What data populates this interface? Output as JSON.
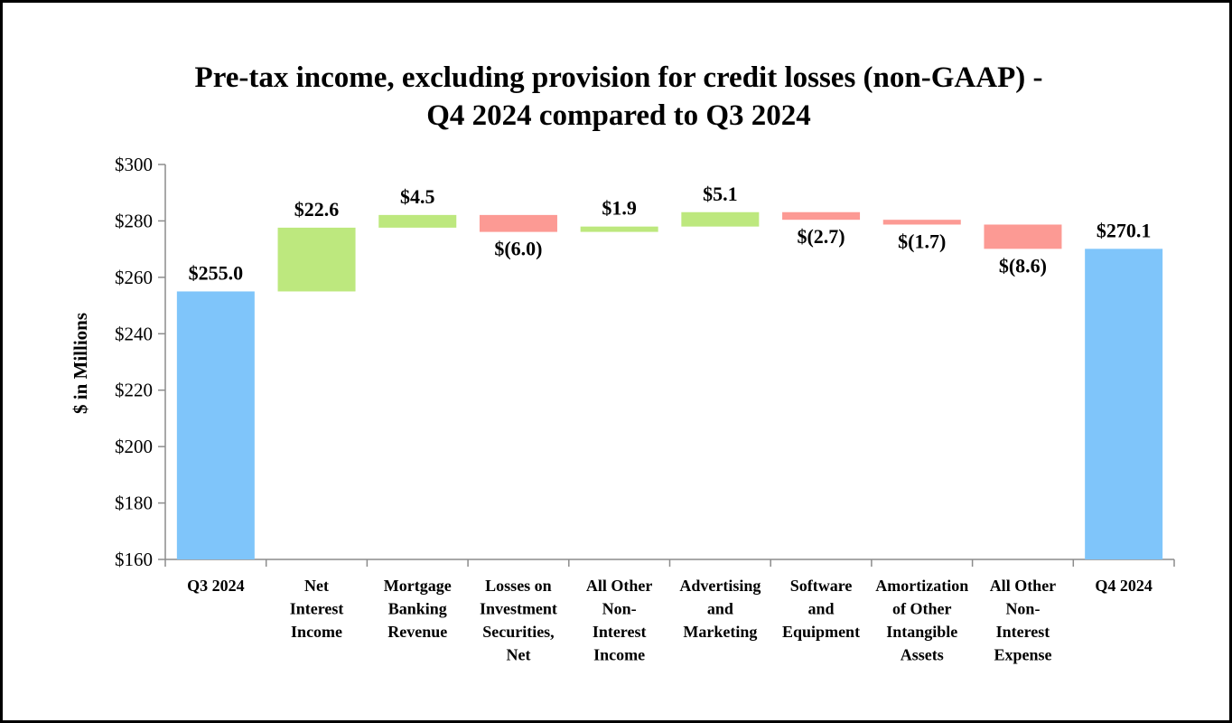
{
  "chart_data": {
    "type": "waterfall",
    "title_lines": [
      "Pre-tax income, excluding provision for credit losses (non-GAAP) -",
      "Q4 2024 compared to Q3 2024"
    ],
    "ylabel": "$ in Millions",
    "ylim": [
      160,
      300
    ],
    "yticks": [
      160,
      180,
      200,
      220,
      240,
      260,
      280,
      300
    ],
    "ytick_labels": [
      "$160",
      "$180",
      "$200",
      "$220",
      "$240",
      "$260",
      "$280",
      "$300"
    ],
    "steps": [
      {
        "category": [
          "Q3 2024"
        ],
        "kind": "total",
        "value": 255.0,
        "label": "$255.0"
      },
      {
        "category": [
          "Net",
          "Interest",
          "Income"
        ],
        "kind": "increase",
        "value": 22.6,
        "label": "$22.6"
      },
      {
        "category": [
          "Mortgage",
          "Banking",
          "Revenue"
        ],
        "kind": "increase",
        "value": 4.5,
        "label": "$4.5"
      },
      {
        "category": [
          "Losses on",
          "Investment",
          "Securities,",
          "Net"
        ],
        "kind": "decrease",
        "value": -6.0,
        "label": "$(6.0)"
      },
      {
        "category": [
          "All Other",
          "Non-",
          "Interest",
          "Income"
        ],
        "kind": "increase",
        "value": 1.9,
        "label": "$1.9"
      },
      {
        "category": [
          "Advertising",
          "and",
          "Marketing"
        ],
        "kind": "increase",
        "value": 5.1,
        "label": "$5.1"
      },
      {
        "category": [
          "Software",
          "and",
          "Equipment"
        ],
        "kind": "decrease",
        "value": -2.7,
        "label": "$(2.7)"
      },
      {
        "category": [
          "Amortization",
          "of Other",
          "Intangible",
          "Assets"
        ],
        "kind": "decrease",
        "value": -1.7,
        "label": "$(1.7)"
      },
      {
        "category": [
          "All Other",
          "Non-",
          "Interest",
          "Expense"
        ],
        "kind": "decrease",
        "value": -8.6,
        "label": "$(8.6)"
      },
      {
        "category": [
          "Q4 2024"
        ],
        "kind": "total",
        "value": 270.1,
        "label": "$270.1"
      }
    ],
    "colors": {
      "total": "#7fc5fa",
      "increase": "#bde87e",
      "decrease": "#fc9a94",
      "axis": "#8c8c8c"
    },
    "grid": false,
    "legend": "none"
  }
}
